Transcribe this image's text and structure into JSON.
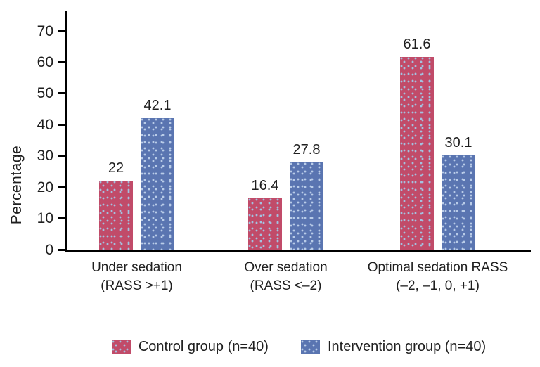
{
  "chart_data": {
    "type": "bar",
    "title": "",
    "ylabel": "Percentage",
    "xlabel": "",
    "ylim": [
      0,
      70
    ],
    "yticks": [
      0,
      10,
      20,
      30,
      40,
      50,
      60,
      70
    ],
    "grid": false,
    "legend_position": "bottom",
    "categories": [
      "Under sedation (RASS >+1)",
      "Over sedation (RASS <–2)",
      "Optimal sedation RASS (–2, –1, 0, +1)"
    ],
    "category_lines": [
      [
        "Under sedation",
        "(RASS >+1)"
      ],
      [
        "Over sedation",
        "(RASS <–2)"
      ],
      [
        "Optimal sedation RASS",
        "(–2, –1, 0, +1)"
      ]
    ],
    "series": [
      {
        "name": "Control group (n=40)",
        "color": "#c14b69",
        "dot_color": "#a3c2e0",
        "values": [
          22,
          16.4,
          61.6
        ],
        "labels": [
          "22",
          "16.4",
          "61.6"
        ]
      },
      {
        "name": "Intervention group (n=40)",
        "color": "#5a75b1",
        "dot_color": "#b9cce8",
        "values": [
          42.1,
          27.8,
          30.1
        ],
        "labels": [
          "42.1",
          "27.8",
          "30.1"
        ]
      }
    ]
  }
}
